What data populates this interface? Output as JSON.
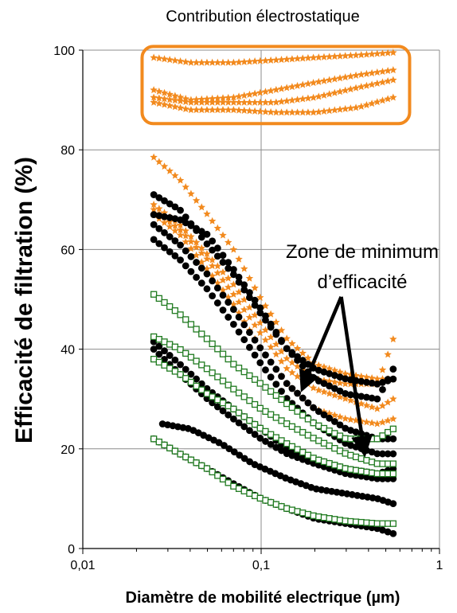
{
  "chart_data": {
    "type": "scatter",
    "title": "",
    "xlabel": "Diamètre de mobilité electrique (µm)",
    "ylabel": "Efficacité de filtration (%)",
    "xscale": "log",
    "xlim": [
      0.01,
      1
    ],
    "ylim": [
      0,
      100
    ],
    "xticks": [
      "0,01",
      "0,1",
      "1"
    ],
    "yticks": [
      "0",
      "20",
      "40",
      "60",
      "80",
      "100"
    ],
    "grid": true,
    "legend": "none",
    "annotations": {
      "electrostatic": "Contribution électrostatique",
      "zone_line1": "Zone de minimum",
      "zone_line2": "d’efficacité"
    },
    "colors": {
      "orange": "#f28a1e",
      "black": "#000000",
      "green": "#1f7a1f",
      "box": "#f28a1e"
    },
    "x_range": [
      0.025,
      0.55
    ],
    "series": [
      {
        "marker": "star",
        "color": "#f28a1e",
        "points": [
          [
            0.025,
            98.5
          ],
          [
            0.04,
            97.5
          ],
          [
            0.07,
            97.5
          ],
          [
            0.12,
            98
          ],
          [
            0.2,
            98.5
          ],
          [
            0.35,
            99
          ],
          [
            0.55,
            99.5
          ]
        ]
      },
      {
        "marker": "star",
        "color": "#f28a1e",
        "points": [
          [
            0.025,
            92
          ],
          [
            0.04,
            90
          ],
          [
            0.07,
            90.5
          ],
          [
            0.12,
            92
          ],
          [
            0.2,
            93.5
          ],
          [
            0.35,
            95
          ],
          [
            0.55,
            96
          ]
        ]
      },
      {
        "marker": "star",
        "color": "#f28a1e",
        "points": [
          [
            0.025,
            90.5
          ],
          [
            0.04,
            89.5
          ],
          [
            0.07,
            89.5
          ],
          [
            0.12,
            89.5
          ],
          [
            0.2,
            90.5
          ],
          [
            0.35,
            92.5
          ],
          [
            0.55,
            94
          ]
        ]
      },
      {
        "marker": "star",
        "color": "#f28a1e",
        "points": [
          [
            0.025,
            89.5
          ],
          [
            0.04,
            88
          ],
          [
            0.07,
            88
          ],
          [
            0.12,
            87.5
          ],
          [
            0.2,
            87.5
          ],
          [
            0.35,
            88.5
          ],
          [
            0.55,
            90.5
          ]
        ]
      },
      {
        "marker": "star",
        "color": "#f28a1e",
        "points": [
          [
            0.025,
            78.5
          ],
          [
            0.035,
            74
          ],
          [
            0.05,
            67
          ],
          [
            0.07,
            60
          ],
          [
            0.1,
            50
          ],
          [
            0.14,
            42
          ],
          [
            0.2,
            37
          ],
          [
            0.3,
            35
          ],
          [
            0.45,
            34
          ],
          [
            0.55,
            34
          ]
        ]
      },
      {
        "marker": "star",
        "color": "#f28a1e",
        "points": [
          [
            0.025,
            69
          ],
          [
            0.035,
            65
          ],
          [
            0.05,
            59
          ],
          [
            0.07,
            53
          ],
          [
            0.1,
            45
          ],
          [
            0.14,
            38
          ],
          [
            0.2,
            34
          ],
          [
            0.3,
            33
          ],
          [
            0.45,
            33
          ],
          [
            0.55,
            42
          ]
        ]
      },
      {
        "marker": "star",
        "color": "#f28a1e",
        "points": [
          [
            0.025,
            68
          ],
          [
            0.035,
            64
          ],
          [
            0.05,
            58
          ],
          [
            0.07,
            51
          ],
          [
            0.1,
            43
          ],
          [
            0.14,
            36
          ],
          [
            0.2,
            32
          ],
          [
            0.3,
            30
          ],
          [
            0.45,
            28
          ],
          [
            0.55,
            30
          ]
        ]
      },
      {
        "marker": "star",
        "color": "#f28a1e",
        "points": [
          [
            0.025,
            67
          ],
          [
            0.035,
            63
          ],
          [
            0.05,
            56
          ],
          [
            0.07,
            49
          ],
          [
            0.1,
            40
          ],
          [
            0.14,
            33
          ],
          [
            0.2,
            28
          ],
          [
            0.3,
            26
          ],
          [
            0.45,
            25
          ],
          [
            0.55,
            26
          ]
        ]
      },
      {
        "marker": "circle",
        "color": "#000000",
        "points": [
          [
            0.025,
            71
          ],
          [
            0.035,
            68
          ],
          [
            0.05,
            61
          ],
          [
            0.07,
            55
          ],
          [
            0.1,
            47
          ],
          [
            0.14,
            40
          ],
          [
            0.2,
            36
          ],
          [
            0.3,
            34
          ],
          [
            0.45,
            33
          ],
          [
            0.55,
            34
          ]
        ]
      },
      {
        "marker": "circle",
        "color": "#000000",
        "points": [
          [
            0.025,
            67
          ],
          [
            0.035,
            66
          ],
          [
            0.05,
            63
          ],
          [
            0.07,
            56
          ],
          [
            0.1,
            48
          ],
          [
            0.14,
            40
          ],
          [
            0.2,
            34
          ],
          [
            0.3,
            31
          ],
          [
            0.45,
            30
          ],
          [
            0.55,
            36
          ]
        ]
      },
      {
        "marker": "circle",
        "color": "#000000",
        "points": [
          [
            0.025,
            65
          ],
          [
            0.035,
            61
          ],
          [
            0.05,
            55
          ],
          [
            0.07,
            48
          ],
          [
            0.1,
            40
          ],
          [
            0.14,
            33
          ],
          [
            0.2,
            28
          ],
          [
            0.3,
            24
          ],
          [
            0.45,
            22
          ],
          [
            0.55,
            22
          ]
        ]
      },
      {
        "marker": "circle",
        "color": "#000000",
        "points": [
          [
            0.025,
            62
          ],
          [
            0.035,
            58
          ],
          [
            0.05,
            52
          ],
          [
            0.07,
            45
          ],
          [
            0.1,
            37
          ],
          [
            0.14,
            30
          ],
          [
            0.2,
            25
          ],
          [
            0.3,
            21
          ],
          [
            0.45,
            19
          ],
          [
            0.55,
            19
          ]
        ]
      },
      {
        "marker": "circle",
        "color": "#000000",
        "points": [
          [
            0.025,
            41.5
          ],
          [
            0.035,
            37
          ],
          [
            0.05,
            32
          ],
          [
            0.07,
            28
          ],
          [
            0.1,
            24
          ],
          [
            0.14,
            20
          ],
          [
            0.2,
            18
          ],
          [
            0.3,
            16
          ],
          [
            0.45,
            15
          ],
          [
            0.55,
            16
          ]
        ]
      },
      {
        "marker": "circle",
        "color": "#000000",
        "points": [
          [
            0.025,
            40
          ],
          [
            0.035,
            35
          ],
          [
            0.05,
            30
          ],
          [
            0.07,
            26
          ],
          [
            0.1,
            22
          ],
          [
            0.14,
            19
          ],
          [
            0.2,
            17
          ],
          [
            0.3,
            15
          ],
          [
            0.45,
            14
          ],
          [
            0.55,
            14
          ]
        ]
      },
      {
        "marker": "circle",
        "color": "#000000",
        "points": [
          [
            0.028,
            25
          ],
          [
            0.04,
            24
          ],
          [
            0.06,
            21
          ],
          [
            0.09,
            17
          ],
          [
            0.14,
            14
          ],
          [
            0.2,
            12
          ],
          [
            0.3,
            11
          ],
          [
            0.45,
            10
          ],
          [
            0.55,
            9
          ]
        ]
      },
      {
        "marker": "circle",
        "color": "#000000",
        "points": [
          [
            0.025,
            22
          ],
          [
            0.035,
            19
          ],
          [
            0.05,
            16
          ],
          [
            0.07,
            13
          ],
          [
            0.1,
            10
          ],
          [
            0.14,
            8
          ],
          [
            0.2,
            6
          ],
          [
            0.3,
            5
          ],
          [
            0.45,
            4
          ],
          [
            0.55,
            3
          ]
        ]
      },
      {
        "marker": "square",
        "color": "#1f7a1f",
        "points": [
          [
            0.025,
            51
          ],
          [
            0.035,
            47
          ],
          [
            0.05,
            42
          ],
          [
            0.07,
            37
          ],
          [
            0.1,
            33
          ],
          [
            0.14,
            29
          ],
          [
            0.2,
            25
          ],
          [
            0.3,
            22
          ],
          [
            0.45,
            22
          ],
          [
            0.55,
            24
          ]
        ]
      },
      {
        "marker": "square",
        "color": "#1f7a1f",
        "points": [
          [
            0.025,
            42.5
          ],
          [
            0.035,
            40
          ],
          [
            0.05,
            36
          ],
          [
            0.07,
            32
          ],
          [
            0.1,
            28
          ],
          [
            0.14,
            25
          ],
          [
            0.2,
            22
          ],
          [
            0.3,
            19
          ],
          [
            0.45,
            17
          ],
          [
            0.55,
            17
          ]
        ]
      },
      {
        "marker": "square",
        "color": "#1f7a1f",
        "points": [
          [
            0.025,
            38
          ],
          [
            0.035,
            35
          ],
          [
            0.05,
            31
          ],
          [
            0.07,
            28
          ],
          [
            0.1,
            24
          ],
          [
            0.14,
            21
          ],
          [
            0.2,
            18
          ],
          [
            0.3,
            16
          ],
          [
            0.45,
            15
          ],
          [
            0.55,
            15
          ]
        ]
      },
      {
        "marker": "square",
        "color": "#1f7a1f",
        "points": [
          [
            0.025,
            22
          ],
          [
            0.035,
            19
          ],
          [
            0.05,
            16
          ],
          [
            0.07,
            12.5
          ],
          [
            0.1,
            10
          ],
          [
            0.14,
            8
          ],
          [
            0.2,
            6.5
          ],
          [
            0.3,
            5.5
          ],
          [
            0.45,
            5
          ],
          [
            0.55,
            5
          ]
        ]
      }
    ]
  }
}
